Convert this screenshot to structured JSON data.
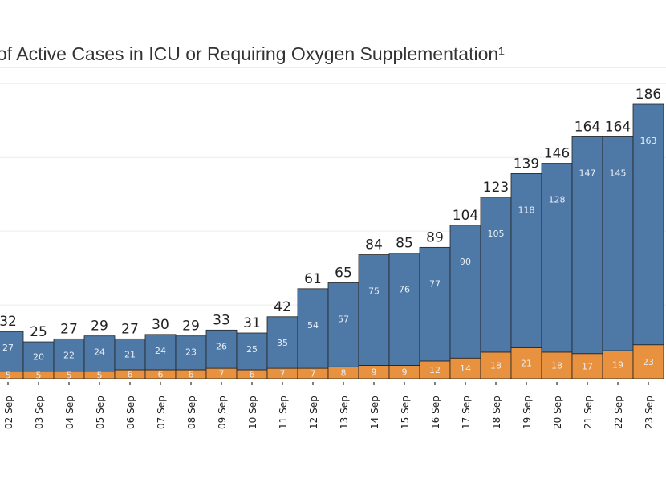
{
  "chart_data": {
    "type": "bar",
    "stacked": true,
    "title": "of Active Cases in ICU or Requiring Oxygen Supplementation¹",
    "categories": [
      "02 Sep",
      "03 Sep",
      "04 Sep",
      "05 Sep",
      "06 Sep",
      "07 Sep",
      "08 Sep",
      "09 Sep",
      "10 Sep",
      "11 Sep",
      "12 Sep",
      "13 Sep",
      "14 Sep",
      "15 Sep",
      "16 Sep",
      "17 Sep",
      "18 Sep",
      "19 Sep",
      "20 Sep",
      "21 Sep",
      "22 Sep",
      "23 Sep"
    ],
    "series": [
      {
        "color": "#e8913f",
        "values": [
          5,
          5,
          5,
          5,
          6,
          6,
          6,
          7,
          6,
          7,
          7,
          8,
          9,
          9,
          12,
          14,
          18,
          21,
          18,
          17,
          19,
          23
        ]
      },
      {
        "color": "#4e79a7",
        "values": [
          27,
          20,
          22,
          24,
          21,
          24,
          23,
          26,
          25,
          35,
          54,
          57,
          75,
          76,
          77,
          90,
          105,
          118,
          128,
          147,
          145,
          163
        ]
      }
    ],
    "totals": [
      32,
      25,
      27,
      29,
      27,
      30,
      29,
      33,
      31,
      42,
      61,
      65,
      84,
      85,
      89,
      104,
      123,
      139,
      146,
      164,
      164,
      186
    ],
    "ylim": [
      0,
      200
    ],
    "grid": true,
    "gridlines": [
      50,
      100,
      150,
      200
    ],
    "legend": "none"
  }
}
